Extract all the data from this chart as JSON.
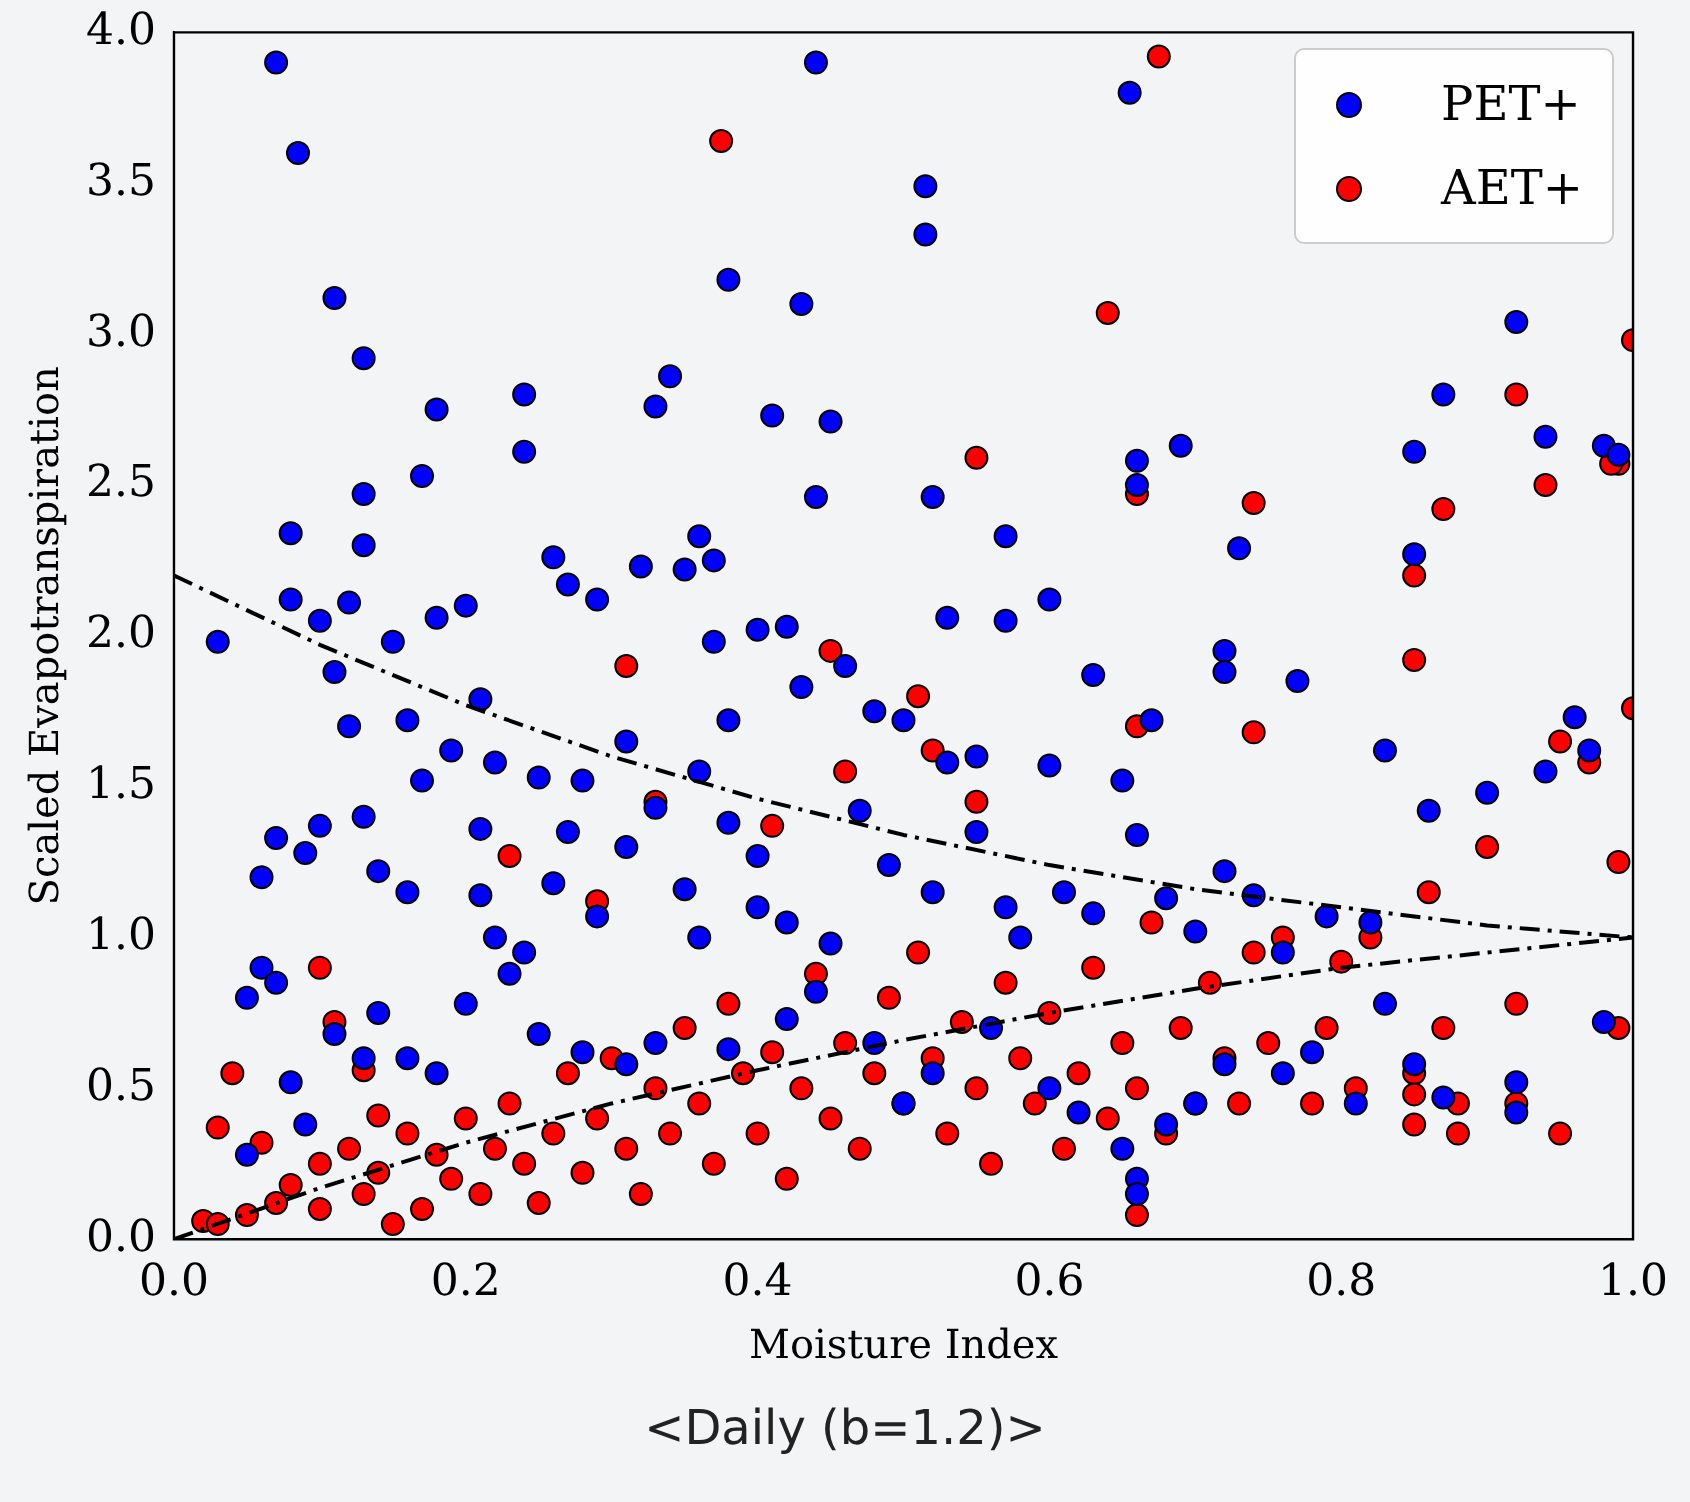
{
  "chart_data": {
    "type": "scatter",
    "xlabel": "Moisture Index",
    "ylabel": "Scaled Evapotranspiration",
    "annotations": [
      "<Daily (b=1.2)>"
    ],
    "xlim": [
      0,
      1
    ],
    "ylim": [
      0,
      4
    ],
    "xticks": [
      {
        "value": 0,
        "label": "0.0"
      },
      {
        "value": 0.2,
        "label": "0.2"
      },
      {
        "value": 0.4,
        "label": "0.4"
      },
      {
        "value": 0.6,
        "label": "0.6"
      },
      {
        "value": 0.8,
        "label": "0.8"
      },
      {
        "value": 1,
        "label": "1.0"
      }
    ],
    "yticks": [
      {
        "value": 0,
        "label": "0.0"
      },
      {
        "value": 0.5,
        "label": "0.5"
      },
      {
        "value": 1,
        "label": "1.0"
      },
      {
        "value": 1.5,
        "label": "1.5"
      },
      {
        "value": 2,
        "label": "2.0"
      },
      {
        "value": 2.5,
        "label": "2.5"
      },
      {
        "value": 3,
        "label": "3.0"
      },
      {
        "value": 3.5,
        "label": "3.5"
      },
      {
        "value": 4,
        "label": "4.0"
      }
    ],
    "grid": false,
    "legend": "top right",
    "marker": "circle",
    "series": [
      {
        "name": "PET+",
        "color": "#0000ff",
        "x": [
          0.07,
          0.085,
          0.44,
          0.11,
          0.13,
          0.515,
          0.515,
          0.38,
          0.43,
          0.655,
          0.92,
          0.34,
          0.33,
          0.41,
          0.45,
          0.24,
          0.24,
          0.18,
          0.08,
          0.13,
          0.13,
          0.17,
          0.1,
          0.08,
          0.03,
          0.52,
          0.66,
          0.66,
          0.69,
          0.73,
          0.87,
          0.85,
          0.94,
          0.98,
          0.99,
          0.85,
          0.57,
          0.53,
          0.6,
          0.57,
          0.44,
          0.37,
          0.36,
          0.35,
          0.26,
          0.27,
          0.29,
          0.32,
          0.2,
          0.18,
          0.15,
          0.12,
          0.11,
          0.12,
          0.16,
          0.19,
          0.21,
          0.22,
          0.25,
          0.28,
          0.31,
          0.36,
          0.38,
          0.37,
          0.4,
          0.42,
          0.43,
          0.46,
          0.48,
          0.5,
          0.53,
          0.55,
          0.6,
          0.63,
          0.65,
          0.67,
          0.72,
          0.72,
          0.77,
          0.83,
          0.86,
          0.9,
          0.94,
          0.96,
          0.97,
          0.07,
          0.06,
          0.09,
          0.06,
          0.05,
          0.1,
          0.13,
          0.14,
          0.16,
          0.17,
          0.21,
          0.21,
          0.22,
          0.24,
          0.26,
          0.27,
          0.29,
          0.31,
          0.33,
          0.35,
          0.36,
          0.38,
          0.4,
          0.4,
          0.42,
          0.45,
          0.47,
          0.49,
          0.52,
          0.55,
          0.57,
          0.58,
          0.61,
          0.63,
          0.66,
          0.68,
          0.7,
          0.72,
          0.74,
          0.76,
          0.79,
          0.82,
          0.83,
          0.07,
          0.11,
          0.13,
          0.16,
          0.18,
          0.14,
          0.2,
          0.23,
          0.25,
          0.28,
          0.31,
          0.33,
          0.38,
          0.42,
          0.44,
          0.48,
          0.5,
          0.52,
          0.56,
          0.6,
          0.62,
          0.65,
          0.66,
          0.66,
          0.68,
          0.7,
          0.72,
          0.76,
          0.78,
          0.81,
          0.85,
          0.87,
          0.92,
          0.92,
          0.98,
          0.08,
          0.09,
          0.05
        ],
        "values": [
          3.9,
          3.6,
          3.9,
          3.12,
          2.92,
          3.49,
          3.33,
          3.18,
          3.1,
          3.8,
          3.04,
          2.86,
          2.76,
          2.73,
          2.71,
          2.8,
          2.61,
          2.75,
          2.34,
          2.47,
          2.3,
          2.53,
          2.05,
          2.12,
          1.98,
          2.46,
          2.58,
          2.5,
          2.63,
          2.29,
          2.8,
          2.61,
          2.66,
          2.63,
          2.6,
          2.27,
          2.33,
          2.06,
          2.12,
          2.05,
          2.46,
          2.25,
          2.33,
          2.22,
          2.26,
          2.17,
          2.12,
          2.23,
          2.1,
          2.06,
          1.98,
          2.11,
          1.88,
          1.7,
          1.72,
          1.62,
          1.79,
          1.58,
          1.53,
          1.52,
          1.65,
          1.55,
          1.72,
          1.98,
          2.02,
          2.03,
          1.83,
          1.9,
          1.75,
          1.72,
          1.58,
          1.6,
          1.57,
          1.87,
          1.52,
          1.72,
          1.95,
          1.88,
          1.85,
          1.62,
          1.42,
          1.48,
          1.55,
          1.73,
          1.62,
          1.33,
          1.2,
          1.28,
          0.9,
          0.8,
          1.37,
          1.4,
          1.22,
          1.15,
          1.52,
          1.36,
          1.14,
          1.0,
          0.95,
          1.18,
          1.35,
          1.07,
          1.3,
          1.43,
          1.16,
          1.0,
          1.38,
          1.27,
          1.1,
          1.05,
          0.98,
          1.42,
          1.24,
          1.15,
          1.35,
          1.1,
          1.0,
          1.15,
          1.08,
          1.34,
          1.13,
          1.02,
          1.22,
          1.14,
          0.95,
          1.07,
          1.05,
          0.78,
          0.85,
          0.68,
          0.6,
          0.6,
          0.55,
          0.75,
          0.78,
          0.88,
          0.68,
          0.62,
          0.58,
          0.65,
          0.63,
          0.73,
          0.82,
          0.65,
          0.45,
          0.55,
          0.7,
          0.5,
          0.42,
          0.3,
          0.2,
          0.15,
          0.38,
          0.45,
          0.58,
          0.55,
          0.62,
          0.45,
          0.58,
          0.47,
          0.52,
          0.42,
          0.72,
          0.52,
          0.38,
          0.28
        ]
      },
      {
        "name": "AET+",
        "color": "#ff0000",
        "x": [
          0.375,
          0.675,
          0.64,
          0.55,
          0.74,
          0.92,
          0.94,
          0.66,
          0.87,
          0.99,
          0.985,
          1.0,
          0.85,
          0.31,
          0.45,
          0.51,
          0.66,
          0.74,
          0.85,
          0.95,
          0.97,
          1.0,
          0.99,
          0.9,
          0.33,
          0.46,
          0.52,
          0.55,
          0.41,
          0.23,
          0.29,
          0.1,
          0.04,
          0.11,
          0.13,
          0.14,
          0.03,
          0.06,
          0.02,
          0.03,
          0.05,
          0.07,
          0.08,
          0.1,
          0.1,
          0.12,
          0.13,
          0.14,
          0.15,
          0.16,
          0.17,
          0.18,
          0.19,
          0.2,
          0.21,
          0.22,
          0.23,
          0.24,
          0.25,
          0.26,
          0.27,
          0.28,
          0.29,
          0.3,
          0.31,
          0.32,
          0.33,
          0.34,
          0.35,
          0.36,
          0.37,
          0.38,
          0.39,
          0.4,
          0.41,
          0.42,
          0.43,
          0.44,
          0.45,
          0.46,
          0.47,
          0.48,
          0.49,
          0.5,
          0.51,
          0.52,
          0.53,
          0.54,
          0.55,
          0.56,
          0.57,
          0.58,
          0.59,
          0.6,
          0.61,
          0.62,
          0.63,
          0.64,
          0.65,
          0.66,
          0.66,
          0.67,
          0.68,
          0.69,
          0.7,
          0.71,
          0.72,
          0.73,
          0.74,
          0.75,
          0.76,
          0.78,
          0.79,
          0.8,
          0.81,
          0.82,
          0.85,
          0.85,
          0.85,
          0.86,
          0.88,
          0.87,
          0.88,
          0.92,
          0.92,
          0.95,
          0.99
        ],
        "values": [
          3.64,
          3.92,
          3.07,
          2.59,
          2.44,
          2.8,
          2.5,
          2.47,
          2.42,
          2.57,
          2.57,
          2.98,
          2.2,
          1.9,
          1.95,
          1.8,
          1.7,
          1.68,
          1.92,
          1.65,
          1.58,
          1.76,
          1.25,
          1.3,
          1.45,
          1.55,
          1.62,
          1.45,
          1.37,
          1.27,
          1.12,
          0.9,
          0.55,
          0.72,
          0.56,
          0.41,
          0.37,
          0.32,
          0.06,
          0.05,
          0.08,
          0.12,
          0.18,
          0.1,
          0.25,
          0.3,
          0.15,
          0.22,
          0.05,
          0.35,
          0.1,
          0.28,
          0.2,
          0.4,
          0.15,
          0.3,
          0.45,
          0.25,
          0.12,
          0.35,
          0.55,
          0.22,
          0.4,
          0.6,
          0.3,
          0.15,
          0.5,
          0.35,
          0.7,
          0.45,
          0.25,
          0.78,
          0.55,
          0.35,
          0.62,
          0.2,
          0.5,
          0.88,
          0.4,
          0.65,
          0.3,
          0.55,
          0.8,
          0.45,
          0.95,
          0.6,
          0.35,
          0.72,
          0.5,
          0.25,
          0.85,
          0.6,
          0.45,
          0.75,
          0.3,
          0.55,
          0.9,
          0.4,
          0.65,
          0.08,
          0.5,
          1.05,
          0.35,
          0.7,
          0.45,
          0.85,
          0.6,
          0.45,
          0.95,
          0.65,
          1.0,
          0.45,
          0.7,
          0.92,
          0.5,
          1.0,
          0.55,
          0.48,
          0.38,
          1.15,
          0.45,
          0.7,
          0.35,
          0.45,
          0.78,
          0.35,
          0.7
        ]
      },
      {
        "type": "line",
        "color": "#000000",
        "line_style": "dashed",
        "marker": "none",
        "x": [
          0,
          0.1,
          0.2,
          0.3,
          0.4,
          0.5,
          0.6,
          0.7,
          0.8,
          0.9,
          1.0
        ],
        "values": [
          2.2,
          1.97,
          1.77,
          1.6,
          1.46,
          1.34,
          1.24,
          1.16,
          1.1,
          1.04,
          1.0
        ]
      },
      {
        "type": "line",
        "color": "#000000",
        "line_style": "dashed",
        "marker": "none",
        "x": [
          0,
          0.1,
          0.2,
          0.3,
          0.4,
          0.5,
          0.6,
          0.7,
          0.8,
          0.9,
          1.0
        ],
        "values": [
          0,
          0.17,
          0.32,
          0.45,
          0.56,
          0.66,
          0.75,
          0.83,
          0.9,
          0.95,
          1.0
        ]
      }
    ]
  }
}
